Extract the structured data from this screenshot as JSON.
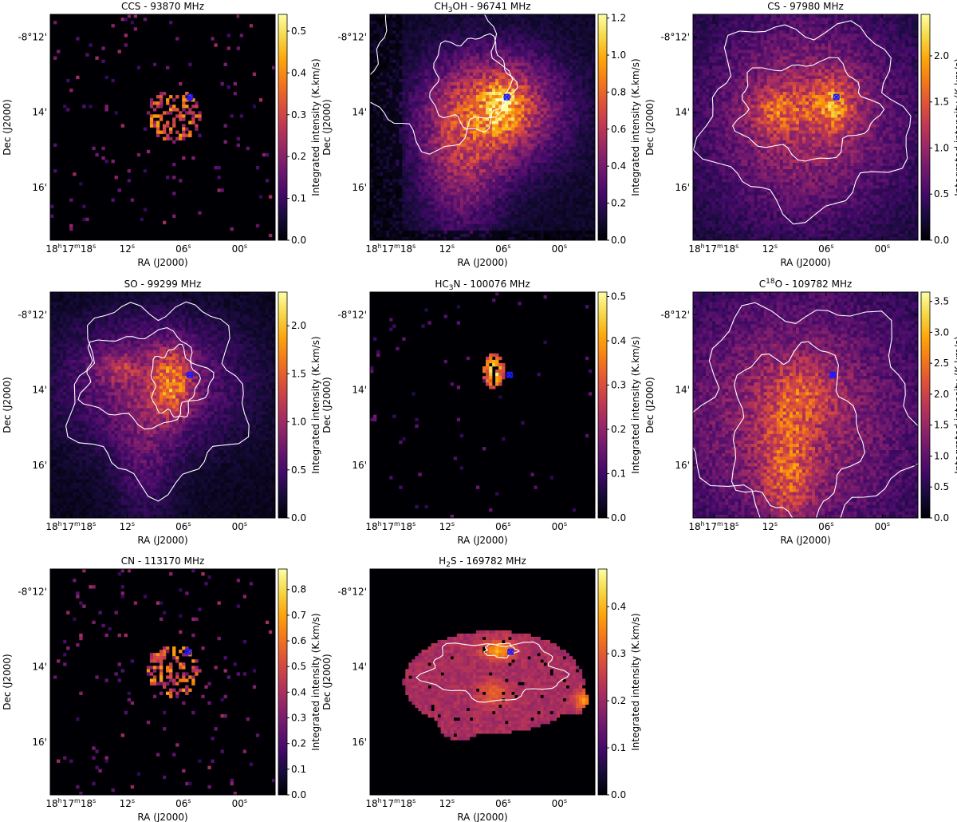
{
  "figure": {
    "description": "Integrated intensity maps of eight molecular lines",
    "marker_color": "#1a1aff",
    "contour_color": "#ffffff",
    "colormap": "inferno"
  },
  "chart_data": [
    {
      "type": "heatmap",
      "title": "CCS - 93870 MHz",
      "title_main": "CCS - 93870 MHz",
      "title_sup": "",
      "title_rest": "",
      "xlabel": "RA (J2000)",
      "ylabel": "Dec (J2000)",
      "colorbar_label": "Integrated intensity (K.km/s)",
      "colorbar_range": [
        0.0,
        0.54
      ],
      "colorbar_ticks": [
        0.0,
        0.1,
        0.2,
        0.3,
        0.4,
        0.5
      ],
      "colorbar_tick_labels": [
        "0.0",
        "0.1",
        "0.2",
        "0.3",
        "0.4",
        "0.5"
      ],
      "x_tick_labels": [
        "18h17m18s",
        "12s",
        "06s",
        "00s"
      ],
      "x_tick_values_s": [
        18,
        12,
        6,
        0
      ],
      "y_tick_labels": [
        "-8°12'",
        "14'",
        "16'"
      ],
      "y_tick_values_arcmin": [
        -12,
        -14,
        -16
      ],
      "ra_range_s": [
        20.2,
        -3.8
      ],
      "dec_range_arcmin": [
        -11.4,
        -17.4
      ],
      "marker_position": {
        "ra_s": 5.3,
        "dec_arcmin": -13.6
      },
      "emission": "sparse"
    },
    {
      "type": "heatmap",
      "title": "CH3OH - 96741 MHz",
      "title_main": "CH",
      "title_sub": "3",
      "title_rest": "OH - 96741 MHz",
      "xlabel": "RA (J2000)",
      "ylabel": "Dec (J2000)",
      "colorbar_label": "Integrated intensity (K.km/s)",
      "colorbar_range": [
        0.0,
        1.22
      ],
      "colorbar_ticks": [
        0.0,
        0.2,
        0.4,
        0.6,
        0.8,
        1.0,
        1.2
      ],
      "colorbar_tick_labels": [
        "0.0",
        "0.2",
        "0.4",
        "0.6",
        "0.8",
        "1.0",
        "1.2"
      ],
      "x_tick_labels": [
        "18h17m18s",
        "12s",
        "06s",
        "00s"
      ],
      "x_tick_values_s": [
        18,
        12,
        6,
        0
      ],
      "y_tick_labels": [
        "-8°12'",
        "14'",
        "16'"
      ],
      "y_tick_values_arcmin": [
        -12,
        -14,
        -16
      ],
      "ra_range_s": [
        20.2,
        -3.8
      ],
      "dec_range_arcmin": [
        -11.4,
        -17.4
      ],
      "marker_position": {
        "ra_s": 5.6,
        "dec_arcmin": -13.6
      },
      "emission": "extended"
    },
    {
      "type": "heatmap",
      "title": "CS - 97980 MHz",
      "title_main": "CS - 97980 MHz",
      "title_sup": "",
      "title_rest": "",
      "xlabel": "RA (J2000)",
      "ylabel": "Dec (J2000)",
      "colorbar_label": "Integrated intensity (K.km/s)",
      "colorbar_range": [
        0.0,
        2.45
      ],
      "colorbar_ticks": [
        0.0,
        0.5,
        1.0,
        1.5,
        2.0
      ],
      "colorbar_tick_labels": [
        "0.0",
        "0.5",
        "1.0",
        "1.5",
        "2.0"
      ],
      "x_tick_labels": [
        "18h17m18s",
        "12s",
        "06s",
        "00s"
      ],
      "x_tick_values_s": [
        18,
        12,
        6,
        0
      ],
      "y_tick_labels": [
        "-8°12'",
        "14'",
        "16'"
      ],
      "y_tick_values_arcmin": [
        -12,
        -14,
        -16
      ],
      "ra_range_s": [
        20.2,
        -3.8
      ],
      "dec_range_arcmin": [
        -11.4,
        -17.4
      ],
      "marker_position": {
        "ra_s": 4.9,
        "dec_arcmin": -13.6
      },
      "emission": "extended"
    },
    {
      "type": "heatmap",
      "title": "SO - 99299 MHz",
      "title_main": "SO - 99299 MHz",
      "title_sup": "",
      "title_rest": "",
      "xlabel": "RA (J2000)",
      "ylabel": "Dec (J2000)",
      "colorbar_label": "Integrated intensity (K.km/s)",
      "colorbar_range": [
        0.0,
        2.35
      ],
      "colorbar_ticks": [
        0.0,
        0.5,
        1.0,
        1.5,
        2.0
      ],
      "colorbar_tick_labels": [
        "0.0",
        "0.5",
        "1.0",
        "1.5",
        "2.0"
      ],
      "x_tick_labels": [
        "18h17m18s",
        "12s",
        "06s",
        "00s"
      ],
      "x_tick_values_s": [
        18,
        12,
        6,
        0
      ],
      "y_tick_labels": [
        "-8°12'",
        "14'",
        "16'"
      ],
      "y_tick_values_arcmin": [
        -12,
        -14,
        -16
      ],
      "ra_range_s": [
        20.2,
        -3.8
      ],
      "dec_range_arcmin": [
        -11.4,
        -17.4
      ],
      "marker_position": {
        "ra_s": 5.3,
        "dec_arcmin": -13.6
      },
      "emission": "extended"
    },
    {
      "type": "heatmap",
      "title": "HC3N - 100076 MHz",
      "title_main": "HC",
      "title_sub": "3",
      "title_rest": "N - 100076 MHz",
      "xlabel": "RA (J2000)",
      "ylabel": "Dec (J2000)",
      "colorbar_label": "Integrated intensity (K.km/s)",
      "colorbar_range": [
        0.0,
        0.51
      ],
      "colorbar_ticks": [
        0.0,
        0.1,
        0.2,
        0.3,
        0.4,
        0.5
      ],
      "colorbar_tick_labels": [
        "0.0",
        "0.1",
        "0.2",
        "0.3",
        "0.4",
        "0.5"
      ],
      "x_tick_labels": [
        "18h17m18s",
        "12s",
        "06s",
        "00s"
      ],
      "x_tick_values_s": [
        18,
        12,
        6,
        0
      ],
      "y_tick_labels": [
        "-8°12'",
        "14'",
        "16'"
      ],
      "y_tick_values_arcmin": [
        -12,
        -14,
        -16
      ],
      "ra_range_s": [
        20.2,
        -3.8
      ],
      "dec_range_arcmin": [
        -11.4,
        -17.4
      ],
      "marker_position": {
        "ra_s": 5.3,
        "dec_arcmin": -13.6
      },
      "emission": "compact"
    },
    {
      "type": "heatmap",
      "title": "C18O - 109782 MHz",
      "title_main": "C",
      "title_sup": "18",
      "title_rest": "O - 109782 MHz",
      "xlabel": "RA (J2000)",
      "ylabel": "Dec (J2000)",
      "colorbar_label": "Integrated intensity (K.km/s)",
      "colorbar_range": [
        0.0,
        3.65
      ],
      "colorbar_ticks": [
        0.0,
        0.5,
        1.0,
        1.5,
        2.0,
        2.5,
        3.0,
        3.5
      ],
      "colorbar_tick_labels": [
        "0.0",
        "0.5",
        "1.0",
        "1.5",
        "2.0",
        "2.5",
        "3.0",
        "3.5"
      ],
      "x_tick_labels": [
        "18h17m18s",
        "12s",
        "06s",
        "00s"
      ],
      "x_tick_values_s": [
        18,
        12,
        6,
        0
      ],
      "y_tick_labels": [
        "-8°12'",
        "14'",
        "16'"
      ],
      "y_tick_values_arcmin": [
        -12,
        -14,
        -16
      ],
      "ra_range_s": [
        20.2,
        -3.8
      ],
      "dec_range_arcmin": [
        -11.4,
        -17.4
      ],
      "marker_position": {
        "ra_s": 5.3,
        "dec_arcmin": -13.6
      },
      "emission": "extended"
    },
    {
      "type": "heatmap",
      "title": "CN - 113170 MHz",
      "title_main": "CN - 113170 MHz",
      "title_sup": "",
      "title_rest": "",
      "xlabel": "RA (J2000)",
      "ylabel": "Dec (J2000)",
      "colorbar_label": "Integrated intensity (K.km/s)",
      "colorbar_range": [
        0.0,
        0.88
      ],
      "colorbar_ticks": [
        0.0,
        0.1,
        0.2,
        0.3,
        0.4,
        0.5,
        0.6,
        0.7,
        0.8
      ],
      "colorbar_tick_labels": [
        "0.0",
        "0.1",
        "0.2",
        "0.3",
        "0.4",
        "0.5",
        "0.6",
        "0.7",
        "0.8"
      ],
      "x_tick_labels": [
        "18h17m18s",
        "12s",
        "06s",
        "00s"
      ],
      "x_tick_values_s": [
        18,
        12,
        6,
        0
      ],
      "y_tick_labels": [
        "-8°12'",
        "14'",
        "16'"
      ],
      "y_tick_values_arcmin": [
        -12,
        -14,
        -16
      ],
      "ra_range_s": [
        20.2,
        -3.8
      ],
      "dec_range_arcmin": [
        -11.4,
        -17.4
      ],
      "marker_position": {
        "ra_s": 5.5,
        "dec_arcmin": -13.6
      },
      "emission": "sparse"
    },
    {
      "type": "heatmap",
      "title": "H2S - 169782 MHz",
      "title_main": "H",
      "title_sub": "2",
      "title_rest": "S - 169782 MHz",
      "xlabel": "RA (J2000)",
      "ylabel": "Dec (J2000)",
      "colorbar_label": "Integrated intensity (K.km/s)",
      "colorbar_range": [
        0.0,
        0.48
      ],
      "colorbar_ticks": [
        0.0,
        0.1,
        0.2,
        0.3,
        0.4
      ],
      "colorbar_tick_labels": [
        "0.0",
        "0.1",
        "0.2",
        "0.3",
        "0.4"
      ],
      "x_tick_labels": [
        "18h17m18s",
        "12s",
        "06s",
        "00s"
      ],
      "x_tick_values_s": [
        18,
        12,
        6,
        0
      ],
      "y_tick_labels": [
        "-8°12'",
        "14'",
        "16'"
      ],
      "y_tick_values_arcmin": [
        -12,
        -14,
        -16
      ],
      "ra_range_s": [
        20.2,
        -3.8
      ],
      "dec_range_arcmin": [
        -11.4,
        -17.4
      ],
      "marker_position": {
        "ra_s": 5.2,
        "dec_arcmin": -13.6
      },
      "emission": "patch"
    }
  ]
}
